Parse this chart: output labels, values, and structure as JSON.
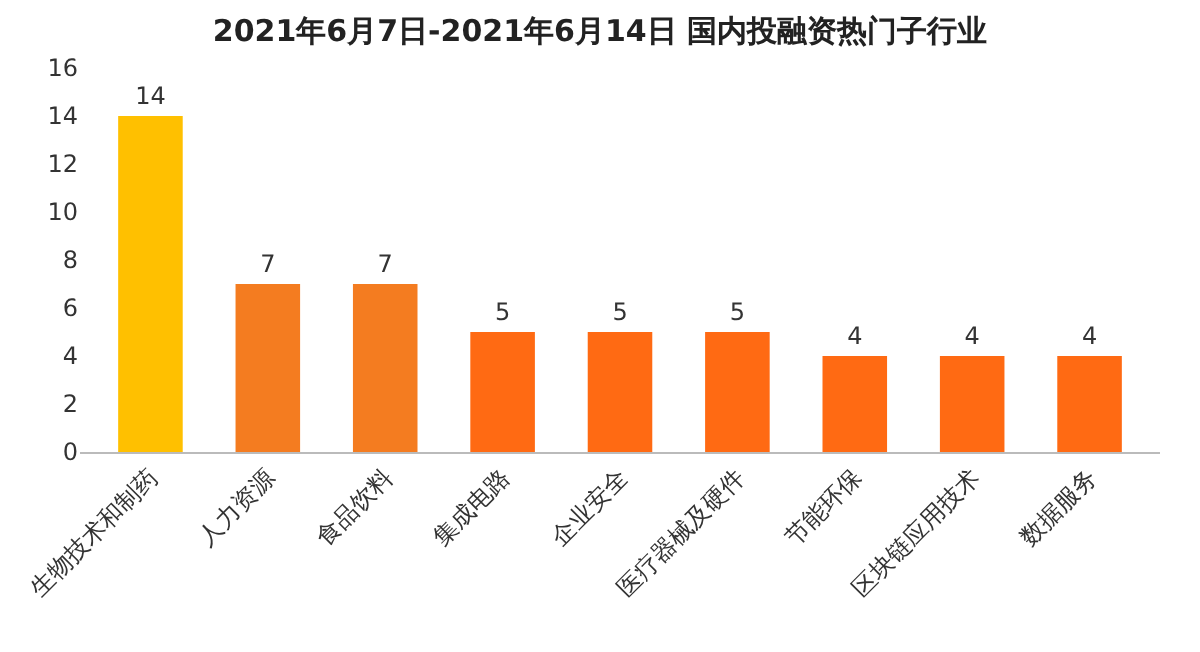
{
  "chart_data": {
    "type": "bar",
    "title": "2021年6月7日-2021年6月14日 国内投融资热门子行业",
    "categories": [
      "生物技术和制药",
      "人力资源",
      "食品饮料",
      "集成电路",
      "企业安全",
      "医疗器械及硬件",
      "节能环保",
      "区块链应用技术",
      "数据服务"
    ],
    "values": [
      14,
      7,
      7,
      5,
      5,
      5,
      4,
      4,
      4
    ],
    "colors": [
      "#ffc000",
      "#f47c20",
      "#f47c20",
      "#ff6a13",
      "#ff6a13",
      "#ff6a13",
      "#ff6a13",
      "#ff6a13",
      "#ff6a13"
    ],
    "ylim": [
      0,
      16
    ],
    "yticks": [
      0,
      2,
      4,
      6,
      8,
      10,
      12,
      14,
      16
    ],
    "grid": false,
    "data_labels": true
  }
}
